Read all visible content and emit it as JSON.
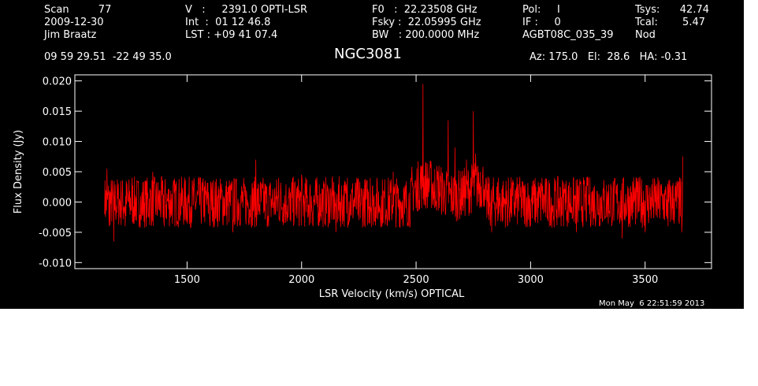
{
  "header": {
    "col1": [
      "Scan         77",
      "2009-12-30",
      "Jim Braatz"
    ],
    "col2": [
      "V   :     2391.0 OPTI-LSR",
      "Int  :  01 12 46.8",
      "LST : +09 41 07.4"
    ],
    "col3": [
      "F0   :  22.23508 GHz",
      "Fsky :  22.05995 GHz",
      "BW   : 200.0000 MHz"
    ],
    "col4": [
      "Pol:     I",
      "IF :     0",
      "AGBT08C_035_39"
    ],
    "col5_labels": [
      "Tsys:",
      "Tcal:",
      "Nod"
    ],
    "col5_values": [
      "42.74",
      "5.47",
      ""
    ],
    "coords": "09 59 29.51  -22 49 35.0",
    "source": "NGC3081",
    "az_el_ha": "Az: 175.0   El:  28.6   HA: -0.31",
    "timestamp": "Mon May  6 22:51:59 2013"
  },
  "colors": {
    "background": "#000000",
    "axes": "#ffffff",
    "trace": "#ff0000"
  },
  "chart_data": {
    "type": "line",
    "xlabel": "LSR Velocity (km/s) OPTICAL",
    "ylabel": "Flux Density (Jy)",
    "xlim": [
      1010,
      3790
    ],
    "ylim": [
      -0.011,
      0.021
    ],
    "xticks": [
      1500,
      2000,
      2500,
      3000,
      3500
    ],
    "yticks": [
      -0.01,
      -0.005,
      0.0,
      0.005,
      0.01,
      0.015,
      0.02
    ],
    "ytick_labels": [
      "-0.010",
      "-0.005",
      "0.000",
      "0.005",
      "0.010",
      "0.015",
      "0.020"
    ],
    "series": [
      {
        "x": [
          1140,
          1150,
          1160,
          1170,
          1180,
          1200,
          1230,
          1260,
          1300,
          1350,
          1400,
          1450,
          1500,
          1550,
          1600,
          1650,
          1700,
          1750,
          1800,
          1850,
          1900,
          1950,
          2000,
          2050,
          2100,
          2150,
          2200,
          2250,
          2300,
          2350,
          2400,
          2450,
          2480,
          2500,
          2520,
          2530,
          2540,
          2560,
          2580,
          2600,
          2620,
          2640,
          2650,
          2670,
          2700,
          2720,
          2740,
          2750,
          2760,
          2770,
          2780,
          2800,
          2830,
          2860,
          2900,
          2950,
          3000,
          3050,
          3100,
          3150,
          3200,
          3250,
          3300,
          3350,
          3400,
          3450,
          3500,
          3550,
          3600,
          3640,
          3660,
          3665
        ],
        "y": [
          -0.002,
          0.0055,
          -0.004,
          0.002,
          -0.0065,
          0.003,
          -0.004,
          0.004,
          -0.003,
          0.005,
          -0.004,
          0.003,
          -0.003,
          0.004,
          -0.004,
          0.003,
          -0.005,
          0.003,
          0.007,
          -0.004,
          0.004,
          -0.003,
          0.0045,
          -0.004,
          0.003,
          -0.005,
          0.004,
          -0.003,
          0.004,
          -0.004,
          0.005,
          -0.002,
          0.004,
          -0.001,
          0.006,
          0.0195,
          0.003,
          0.005,
          -0.001,
          0.006,
          0.0005,
          0.0135,
          0.002,
          0.009,
          0.004,
          0.007,
          0.003,
          0.015,
          0.008,
          0.006,
          0.005,
          0.002,
          -0.005,
          0.004,
          -0.004,
          0.003,
          -0.004,
          0.004,
          -0.003,
          0.003,
          -0.005,
          0.004,
          -0.004,
          0.003,
          -0.006,
          0.004,
          -0.005,
          0.003,
          -0.004,
          0.003,
          -0.005,
          0.0075
        ]
      }
    ]
  }
}
